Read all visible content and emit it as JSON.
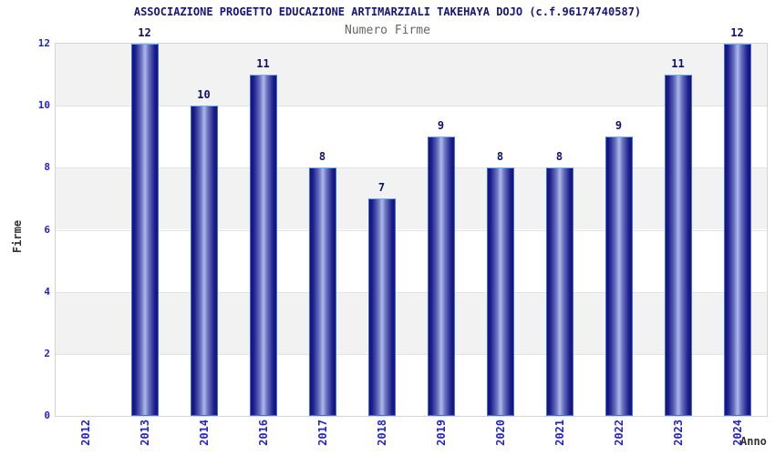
{
  "chart_data": {
    "type": "bar",
    "title": "ASSOCIAZIONE PROGETTO EDUCAZIONE ARTIMARZIALI TAKEHAYA DOJO (c.f.96174740587)",
    "subtitle": "Numero Firme",
    "xlabel": "Anno",
    "ylabel": "Firme",
    "categories": [
      "2012",
      "2013",
      "2014",
      "2016",
      "2017",
      "2018",
      "2019",
      "2020",
      "2021",
      "2022",
      "2023",
      "2024"
    ],
    "values": [
      0,
      12,
      10,
      11,
      8,
      7,
      9,
      8,
      8,
      9,
      11,
      12
    ],
    "ylim": [
      0,
      12
    ],
    "ytick_step": 2,
    "yticks": [
      0,
      2,
      4,
      6,
      8,
      10,
      12
    ],
    "grid": "alternating-horizontal-bands",
    "legend_position": "none",
    "notes": "no bar drawn for 2012 (value 0); bars labeled with value above top; x tick labels rotated 90deg",
    "colors": {
      "title_text": "#15157b",
      "subtitle_text": "#666666",
      "tick_label": "#2323cb",
      "axis_title_text": "#333333",
      "value_label": "#101070",
      "band_gray": "#f2f2f2",
      "band_white": "#ffffff",
      "gridline": "#e3e3e3",
      "plot_border": "#d4d4d4",
      "bar_edge": "#12127a",
      "bar_center": "#aeb8e8",
      "bar_border": "#3d6fe0"
    }
  }
}
